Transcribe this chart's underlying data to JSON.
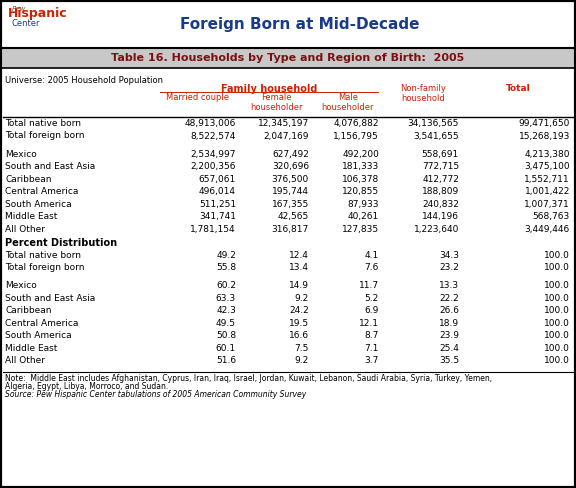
{
  "title": "Table 16. Households by Type and Region of Birth:  2005",
  "header_title": "Foreign Born at Mid-Decade",
  "universe": "Universe: 2005 Household Population",
  "col_headers": {
    "family_household": "Family household",
    "married_couple": "Married couple",
    "female_householder": "Female\nhouseholder",
    "male_householder": "Male\nhouseholder",
    "non_family": "Non-family\nhousehold",
    "total": "Total"
  },
  "rows_count": [
    [
      "Total native born",
      "48,913,006",
      "12,345,197",
      "4,076,882",
      "34,136,565",
      "99,471,650"
    ],
    [
      "Total foreign born",
      "8,522,574",
      "2,047,169",
      "1,156,795",
      "3,541,655",
      "15,268,193"
    ],
    [
      "",
      "",
      "",
      "",
      "",
      ""
    ],
    [
      "Mexico",
      "2,534,997",
      "627,492",
      "492,200",
      "558,691",
      "4,213,380"
    ],
    [
      "South and East Asia",
      "2,200,356",
      "320,696",
      "181,333",
      "772,715",
      "3,475,100"
    ],
    [
      "Caribbean",
      "657,061",
      "376,500",
      "106,378",
      "412,772",
      "1,552,711"
    ],
    [
      "Central America",
      "496,014",
      "195,744",
      "120,855",
      "188,809",
      "1,001,422"
    ],
    [
      "South America",
      "511,251",
      "167,355",
      "87,933",
      "240,832",
      "1,007,371"
    ],
    [
      "Middle East",
      "341,741",
      "42,565",
      "40,261",
      "144,196",
      "568,763"
    ],
    [
      "All Other",
      "1,781,154",
      "316,817",
      "127,835",
      "1,223,640",
      "3,449,446"
    ]
  ],
  "section2_label": "Percent Distribution",
  "rows_pct": [
    [
      "Total native born",
      "49.2",
      "12.4",
      "4.1",
      "34.3",
      "100.0"
    ],
    [
      "Total foreign born",
      "55.8",
      "13.4",
      "7.6",
      "23.2",
      "100.0"
    ],
    [
      "",
      "",
      "",
      "",
      "",
      ""
    ],
    [
      "Mexico",
      "60.2",
      "14.9",
      "11.7",
      "13.3",
      "100.0"
    ],
    [
      "South and East Asia",
      "63.3",
      "9.2",
      "5.2",
      "22.2",
      "100.0"
    ],
    [
      "Caribbean",
      "42.3",
      "24.2",
      "6.9",
      "26.6",
      "100.0"
    ],
    [
      "Central America",
      "49.5",
      "19.5",
      "12.1",
      "18.9",
      "100.0"
    ],
    [
      "South America",
      "50.8",
      "16.6",
      "8.7",
      "23.9",
      "100.0"
    ],
    [
      "Middle East",
      "60.1",
      "7.5",
      "7.1",
      "25.4",
      "100.0"
    ],
    [
      "All Other",
      "51.6",
      "9.2",
      "3.7",
      "35.5",
      "100.0"
    ]
  ],
  "note1": "Note:  Middle East includes Afghanistan, Cyprus, Iran, Iraq, Israel, Jordan, Kuwait, Lebanon, Saudi Arabia, Syria, Turkey, Yemen,",
  "note2": "Algeria, Egypt, Libya, Morroco, and Sudan.",
  "source": "Source: Pew Hispanic Center tabulations of 2005 American Community Survey",
  "colors": {
    "gray_bar": "#c8c8c8",
    "header_text": "#7B1010",
    "family_text": "#cc2200",
    "col_header_text": "#cc2200",
    "top_title_text": "#1a3a8a",
    "logo_hispanic": "#cc2200",
    "logo_center": "#1a3a8a",
    "logo_pew": "#555555"
  },
  "figsize": [
    5.76,
    4.88
  ],
  "dpi": 100
}
